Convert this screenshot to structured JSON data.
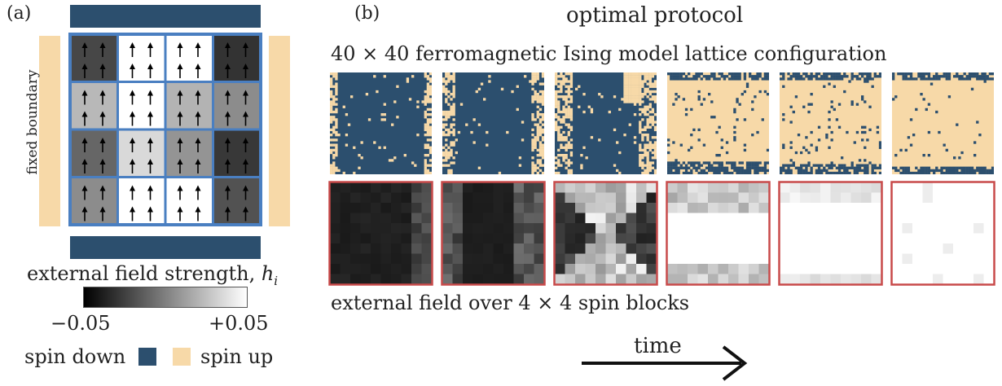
{
  "panel_a": {
    "label": "(a)",
    "side_label": "fixed boundary",
    "colorbar_title": "external field strength, ",
    "colorbar_title_var": "h",
    "colorbar_title_sub": "i",
    "colorbar_min": "−0.05",
    "colorbar_max": "+0.05",
    "legend_down": "spin down",
    "legend_up": "spin up",
    "grid_levels": [
      [
        0.28,
        1.0,
        1.0,
        0.2
      ],
      [
        0.72,
        1.0,
        0.7,
        0.55
      ],
      [
        0.4,
        0.85,
        0.58,
        0.22
      ],
      [
        0.55,
        1.0,
        1.0,
        0.32
      ]
    ]
  },
  "panel_b": {
    "label": "(b)",
    "title": "optimal protocol",
    "subtitle": "40 × 40 ferromagnetic Ising model lattice configuration",
    "caption": "external field over 4 × 4 spin blocks",
    "time_label": "time",
    "up_fractions": [
      0.1,
      0.12,
      0.15,
      0.8,
      0.82,
      0.92
    ]
  },
  "colors": {
    "spin_down": "#2c4f6e",
    "spin_up": "#f7d9a8",
    "grid_line": "#4a7fc1",
    "frame_red": "#c84a4a"
  }
}
